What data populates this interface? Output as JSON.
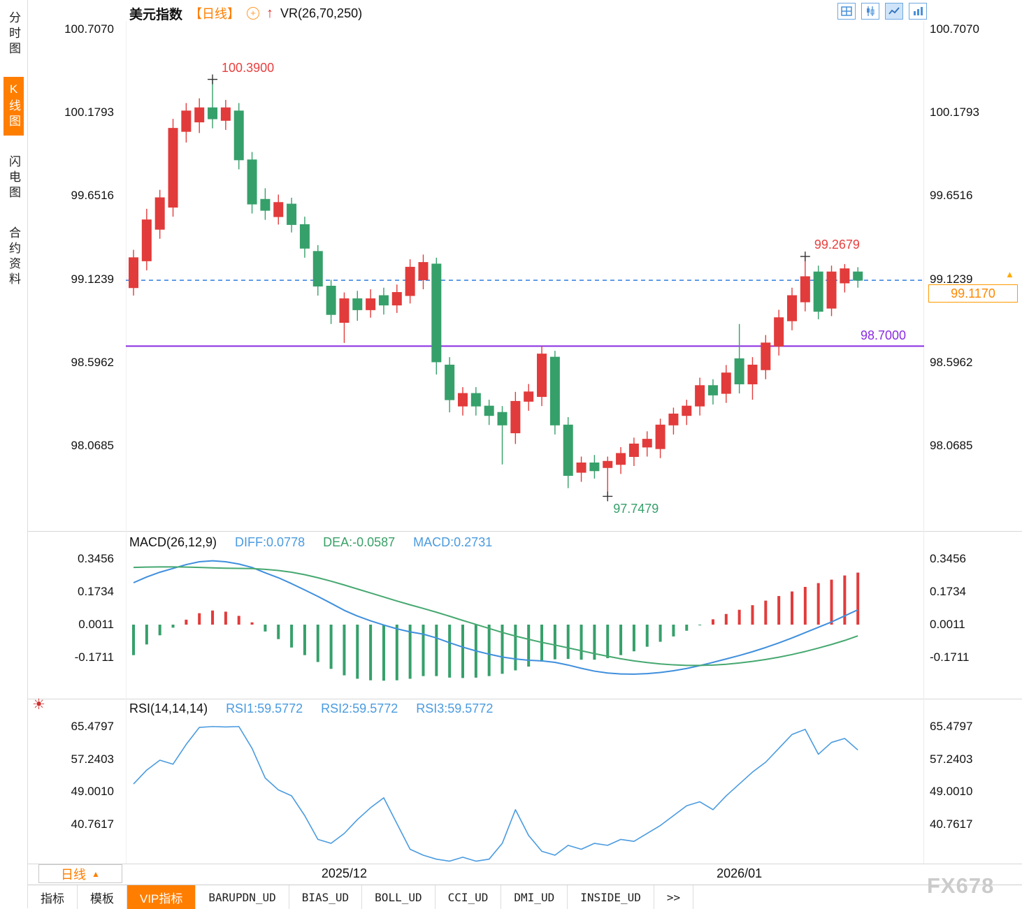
{
  "app": {
    "watermark": "FX678"
  },
  "sidebar": {
    "items": [
      {
        "id": "time-chart",
        "label": "分时图",
        "active": false
      },
      {
        "id": "kline-chart",
        "label": "K线图",
        "active": true
      },
      {
        "id": "lightning-chart",
        "label": "闪电图",
        "active": false
      },
      {
        "id": "contract-info",
        "label": "合约资料",
        "active": false
      }
    ]
  },
  "header": {
    "symbol": "美元指数",
    "period_tag": "【日线】",
    "overlay_indicator": "VR(26,70,250)"
  },
  "toolbar": {
    "icons": [
      {
        "name": "layout-grid-icon"
      },
      {
        "name": "candlestick-icon"
      },
      {
        "name": "line-chart-icon",
        "active": true
      },
      {
        "name": "bar-chart-icon"
      }
    ]
  },
  "price_marker": {
    "value": "99.1170"
  },
  "level_label": "98.7000",
  "macd_header": {
    "title": "MACD(26,12,9)",
    "diff_label": "DIFF:0.0778",
    "dea_label": "DEA:-0.0587",
    "macd_label": "MACD:0.2731"
  },
  "rsi_header": {
    "title": "RSI(14,14,14)",
    "rsi1_label": "RSI1:59.5772",
    "rsi2_label": "RSI2:59.5772",
    "rsi3_label": "RSI3:59.5772"
  },
  "period_selector": {
    "label": "日线",
    "arrow": "▲"
  },
  "bottom_tabs": {
    "tabs": [
      {
        "label": "指标",
        "active": false,
        "mono": false
      },
      {
        "label": "模板",
        "active": false,
        "mono": false
      },
      {
        "label": "VIP指标",
        "active": true,
        "mono": false
      },
      {
        "label": "BARUPDN_UD",
        "active": false,
        "mono": true
      },
      {
        "label": "BIAS_UD",
        "active": false,
        "mono": true
      },
      {
        "label": "BOLL_UD",
        "active": false,
        "mono": true
      },
      {
        "label": "CCI_UD",
        "active": false,
        "mono": true
      },
      {
        "label": "DMI_UD",
        "active": false,
        "mono": true
      },
      {
        "label": "INSIDE_UD",
        "active": false,
        "mono": true
      },
      {
        "label": ">>",
        "active": false,
        "mono": true
      }
    ]
  },
  "colors": {
    "up": "#e23b3b",
    "down": "#36a06a",
    "accent_orange": "#ff7e00",
    "line_blue": "#3f8fdd",
    "line_green": "#46a870",
    "dashed_blue": "#2f7de1",
    "purple": "#8a2be2",
    "annotation_red": "#e8403f",
    "annotation_green": "#36a06a"
  },
  "chart_data": [
    {
      "type": "candlestick",
      "title": "美元指数 日线",
      "yticks": [
        "100.7070",
        "100.1793",
        "99.6516",
        "99.1239",
        "98.5962",
        "98.0685"
      ],
      "ylim": [
        97.53,
        100.76
      ],
      "ohlc": [
        [
          99.07,
          99.31,
          99.02,
          99.26
        ],
        [
          99.24,
          99.57,
          99.18,
          99.5
        ],
        [
          99.44,
          99.69,
          99.38,
          99.64
        ],
        [
          99.58,
          100.14,
          99.52,
          100.08
        ],
        [
          100.06,
          100.24,
          99.99,
          100.19
        ],
        [
          100.12,
          100.27,
          100.05,
          100.21
        ],
        [
          100.21,
          100.39,
          100.08,
          100.14
        ],
        [
          100.13,
          100.26,
          100.07,
          100.21
        ],
        [
          100.19,
          100.24,
          99.82,
          99.88
        ],
        [
          99.88,
          99.93,
          99.54,
          99.6
        ],
        [
          99.63,
          99.7,
          99.5,
          99.56
        ],
        [
          99.52,
          99.66,
          99.47,
          99.61
        ],
        [
          99.6,
          99.64,
          99.42,
          99.47
        ],
        [
          99.47,
          99.52,
          99.26,
          99.32
        ],
        [
          99.3,
          99.34,
          99.02,
          99.08
        ],
        [
          99.08,
          99.12,
          98.84,
          98.9
        ],
        [
          98.85,
          99.04,
          98.72,
          99.0
        ],
        [
          99.0,
          99.05,
          98.86,
          98.93
        ],
        [
          98.93,
          99.06,
          98.88,
          99.0
        ],
        [
          99.02,
          99.07,
          98.9,
          98.96
        ],
        [
          98.96,
          99.09,
          98.91,
          99.04
        ],
        [
          99.02,
          99.25,
          98.97,
          99.2
        ],
        [
          99.12,
          99.28,
          99.06,
          99.23
        ],
        [
          99.22,
          99.26,
          98.52,
          98.6
        ],
        [
          98.58,
          98.63,
          98.28,
          98.36
        ],
        [
          98.32,
          98.44,
          98.26,
          98.4
        ],
        [
          98.4,
          98.44,
          98.26,
          98.32
        ],
        [
          98.32,
          98.36,
          98.2,
          98.26
        ],
        [
          98.28,
          98.32,
          97.95,
          98.2
        ],
        [
          98.15,
          98.41,
          98.08,
          98.35
        ],
        [
          98.35,
          98.46,
          98.29,
          98.41
        ],
        [
          98.38,
          98.7,
          98.32,
          98.65
        ],
        [
          98.63,
          98.67,
          98.14,
          98.2
        ],
        [
          98.2,
          98.25,
          97.8,
          97.88
        ],
        [
          97.9,
          98.0,
          97.84,
          97.96
        ],
        [
          97.96,
          98.01,
          97.86,
          97.91
        ],
        [
          97.93,
          98.0,
          97.748,
          97.97
        ],
        [
          97.95,
          98.06,
          97.89,
          98.02
        ],
        [
          98.0,
          98.12,
          97.94,
          98.08
        ],
        [
          98.06,
          98.16,
          98.0,
          98.11
        ],
        [
          98.05,
          98.24,
          97.99,
          98.2
        ],
        [
          98.2,
          98.31,
          98.14,
          98.27
        ],
        [
          98.26,
          98.36,
          98.2,
          98.32
        ],
        [
          98.32,
          98.5,
          98.26,
          98.45
        ],
        [
          98.45,
          98.49,
          98.33,
          98.39
        ],
        [
          98.4,
          98.58,
          98.34,
          98.53
        ],
        [
          98.62,
          98.84,
          98.4,
          98.46
        ],
        [
          98.46,
          98.63,
          98.36,
          98.58
        ],
        [
          98.55,
          98.77,
          98.49,
          98.72
        ],
        [
          98.7,
          98.93,
          98.64,
          98.88
        ],
        [
          98.86,
          99.07,
          98.8,
          99.02
        ],
        [
          98.98,
          99.2679,
          98.92,
          99.14
        ],
        [
          99.17,
          99.21,
          98.87,
          98.92
        ],
        [
          98.94,
          99.21,
          98.89,
          99.17
        ],
        [
          99.1,
          99.22,
          99.04,
          99.19
        ],
        [
          99.17,
          99.2,
          99.07,
          99.117
        ]
      ],
      "x_labels": [
        {
          "text": "2025/12",
          "index": 16
        },
        {
          "text": "2026/01",
          "index": 46
        }
      ],
      "levels": [
        {
          "value": 98.7,
          "label": "98.7000",
          "color": "purple",
          "style": "solid"
        },
        {
          "value": 99.117,
          "label": "99.1170",
          "color": "blue",
          "style": "dashed"
        }
      ],
      "annotations": [
        {
          "text": "100.3900",
          "value": 100.39,
          "index": 6,
          "color": "red",
          "placement": "above"
        },
        {
          "text": "99.2679",
          "value": 99.2679,
          "index": 51,
          "color": "red",
          "placement": "above"
        },
        {
          "text": "97.7479",
          "value": 97.7479,
          "index": 36,
          "color": "green",
          "placement": "below"
        }
      ]
    },
    {
      "type": "bar",
      "title": "MACD(26,12,9)",
      "yticks": [
        "0.3456",
        "0.1734",
        "0.0011",
        "-0.1711"
      ],
      "series": [
        {
          "name": "DIFF",
          "values": [
            0.22,
            0.25,
            0.275,
            0.295,
            0.315,
            0.33,
            0.335,
            0.33,
            0.318,
            0.3,
            0.272,
            0.246,
            0.215,
            0.182,
            0.148,
            0.112,
            0.075,
            0.045,
            0.02,
            -0.002,
            -0.022,
            -0.038,
            -0.05,
            -0.07,
            -0.095,
            -0.118,
            -0.138,
            -0.155,
            -0.17,
            -0.18,
            -0.187,
            -0.19,
            -0.198,
            -0.212,
            -0.229,
            -0.244,
            -0.254,
            -0.259,
            -0.26,
            -0.257,
            -0.251,
            -0.242,
            -0.23,
            -0.215,
            -0.198,
            -0.18,
            -0.162,
            -0.142,
            -0.12,
            -0.096,
            -0.07,
            -0.042,
            -0.014,
            0.014,
            0.046,
            0.0778
          ]
        },
        {
          "name": "DEA",
          "values": [
            0.3,
            0.302,
            0.303,
            0.303,
            0.302,
            0.3,
            0.298,
            0.296,
            0.295,
            0.294,
            0.29,
            0.284,
            0.275,
            0.262,
            0.246,
            0.228,
            0.208,
            0.187,
            0.166,
            0.145,
            0.124,
            0.104,
            0.085,
            0.065,
            0.044,
            0.022,
            0.001,
            -0.02,
            -0.041,
            -0.06,
            -0.077,
            -0.093,
            -0.107,
            -0.122,
            -0.137,
            -0.152,
            -0.166,
            -0.179,
            -0.19,
            -0.199,
            -0.206,
            -0.211,
            -0.214,
            -0.214,
            -0.212,
            -0.208,
            -0.201,
            -0.193,
            -0.183,
            -0.171,
            -0.157,
            -0.141,
            -0.123,
            -0.104,
            -0.083,
            -0.0587
          ]
        }
      ],
      "histogram_rule": "(DIFF-DEA)*2",
      "current": {
        "diff": 0.0778,
        "dea": -0.0587,
        "macd": 0.2731
      }
    },
    {
      "type": "line",
      "title": "RSI(14,14,14)",
      "yticks": [
        "65.4797",
        "57.2403",
        "49.0010",
        "40.7617"
      ],
      "series": [
        {
          "name": "RSI",
          "values": [
            51,
            54.5,
            57,
            56,
            61,
            65.3,
            65.5,
            65.4,
            65.5,
            60,
            52.5,
            49.5,
            48,
            43,
            37,
            36,
            38.5,
            42,
            45,
            47.5,
            41,
            34.5,
            33,
            32,
            31.5,
            32.5,
            31.5,
            32,
            36,
            44.5,
            38,
            34,
            33,
            35.5,
            34.5,
            36,
            35.5,
            37,
            36.5,
            38.5,
            40.5,
            43,
            45.5,
            46.5,
            44.5,
            48,
            51,
            54,
            56.5,
            60,
            63.5,
            64.8,
            58.5,
            61.5,
            62.5,
            59.5772
          ]
        }
      ],
      "current": 59.5772
    }
  ]
}
